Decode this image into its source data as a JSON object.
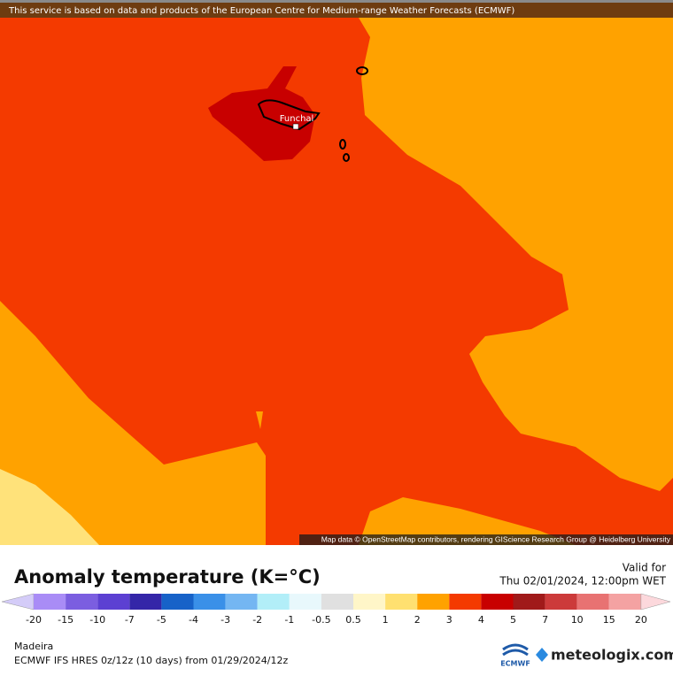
{
  "header": {
    "notice": "This service is based on data and products of the European Centre for Medium-range Weather Forecasts (ECMWF)"
  },
  "map": {
    "place_label": "Funchal",
    "attribution": "Map data © OpenStreetMap contributors, rendering GIScience Research Group @ Heidelberg University"
  },
  "legend": {
    "title": "Anomaly temperature (K=°C)",
    "valid_label": "Valid for",
    "valid_time": "Thu 02/01/2024, 12:00pm WET",
    "colorbar": {
      "below_color": "#d4ccf8",
      "above_color": "#fcd8dc",
      "colors": [
        "#a98cf6",
        "#7b5ee0",
        "#5c40d2",
        "#3426a8",
        "#1762c8",
        "#3a90e8",
        "#74b6f2",
        "#b2eef8",
        "#e8f8fc",
        "#e0e0e0",
        "#fff6c8",
        "#ffe070",
        "#ffa200",
        "#f43a00",
        "#c80000",
        "#a01a1a",
        "#cc3a3a",
        "#e87272",
        "#f4a2a2"
      ],
      "ticks": [
        -20,
        -15,
        -10,
        -7,
        -5,
        -4,
        -3,
        -2,
        -1,
        -0.5,
        0.5,
        1,
        2,
        3,
        4,
        5,
        7,
        10,
        15,
        20
      ]
    }
  },
  "footer": {
    "region": "Madeira",
    "run_info": "ECMWF IFS HRES 0z/12z (10 days) from  01/29/2024/12z",
    "ecmwf_logo": "ECMWF",
    "brand": "meteologix.com"
  }
}
